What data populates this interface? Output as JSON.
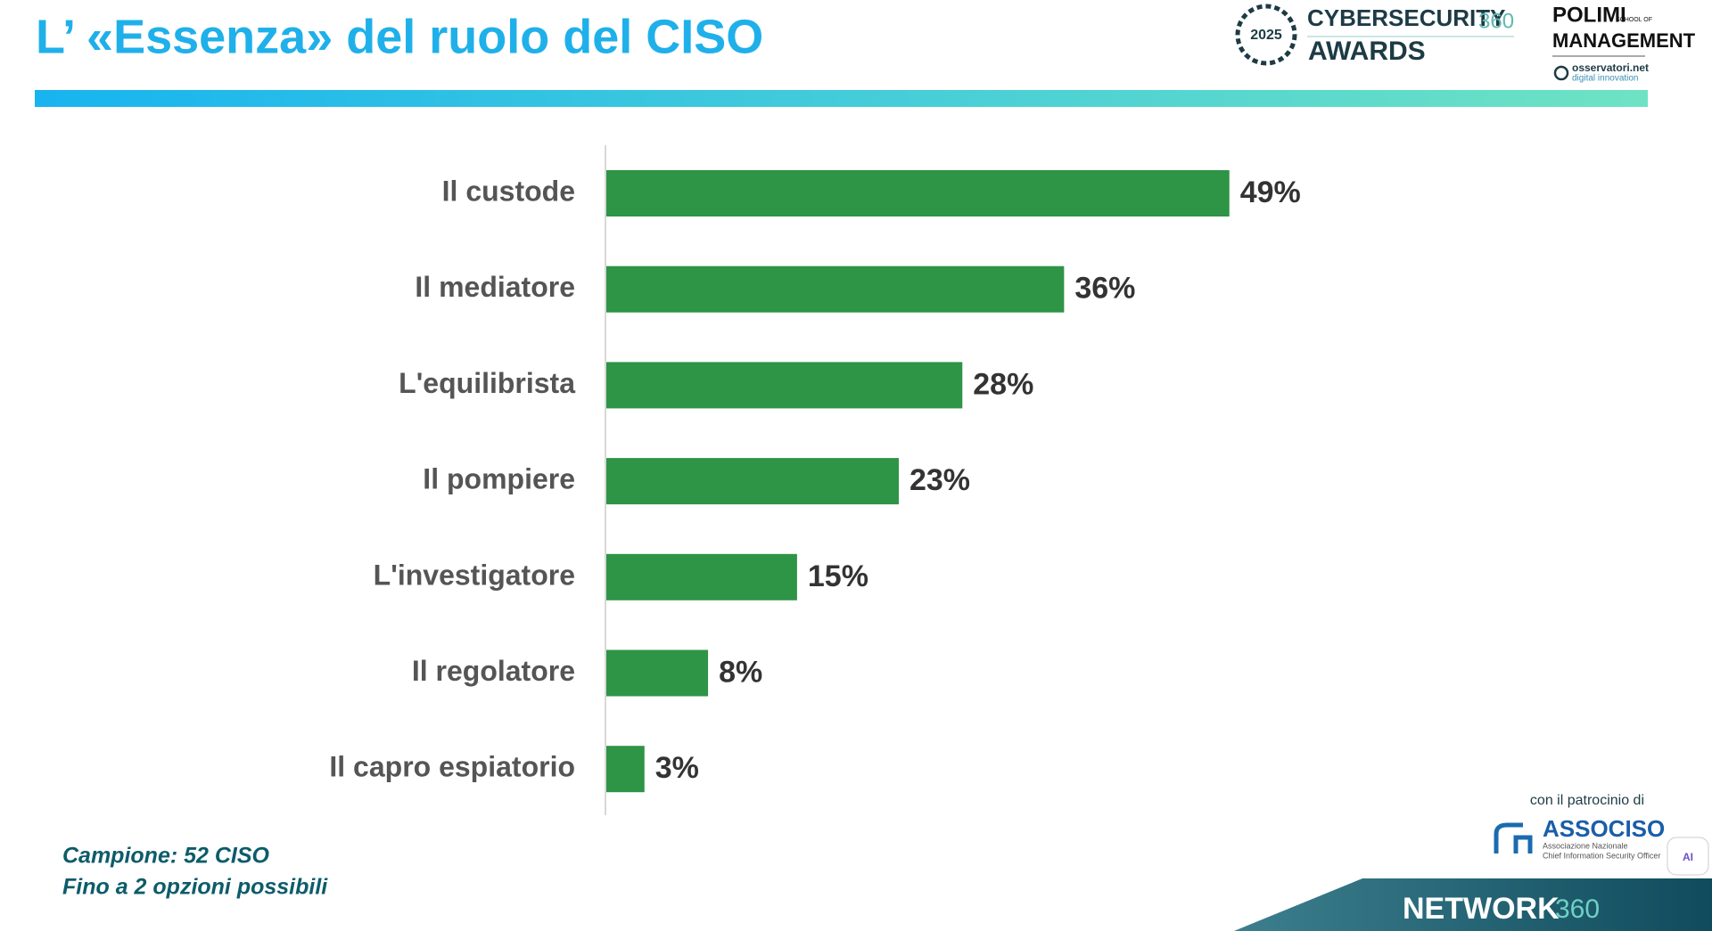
{
  "header": {
    "title": "L’ «Essenza» del ruolo del CISO"
  },
  "logos": {
    "award_year": "2025",
    "cyber": "CYBERSECURITY",
    "cyber_suffix": "360",
    "awards": "AWARDS",
    "polimi": "POLIMI",
    "school_of": "SCHOOL OF",
    "management": "MANAGEMENT",
    "osservatori": "osservatori.net",
    "digital": "digital innovation",
    "patronage": "con il patrocinio di",
    "associso": "ASSOCISO",
    "associso_line1": "Associazione Nazionale",
    "associso_line2": "Chief Information Security Officer",
    "network": "NETWORK",
    "network_suffix": "360",
    "widget": "AI"
  },
  "footer": {
    "sample": "Campione: 52 CISO",
    "options": "Fino a 2 opzioni possibili"
  },
  "chart_data": {
    "type": "bar",
    "orientation": "horizontal",
    "color": "#2e9446",
    "categories": [
      "Il custode",
      "Il mediatore",
      "L'equilibrista",
      "Il pompiere",
      "L'investigatore",
      "Il regolatore",
      "Il capro espiatorio"
    ],
    "values": [
      49,
      36,
      28,
      23,
      15,
      8,
      3
    ],
    "value_labels": [
      "49%",
      "36%",
      "28%",
      "23%",
      "15%",
      "8%",
      "3%"
    ]
  }
}
